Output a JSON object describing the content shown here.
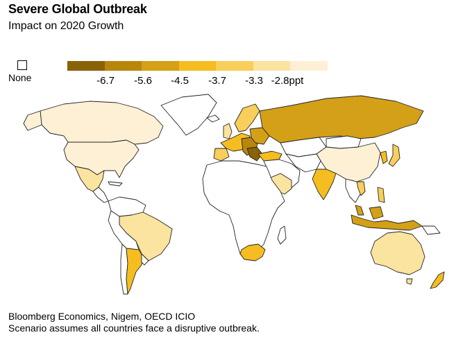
{
  "header": {
    "title": "Severe Global Outbreak",
    "subtitle": "Impact on 2020 Growth"
  },
  "legend": {
    "none_label": "None",
    "ticks": [
      "-6.7",
      "-5.6",
      "-4.5",
      "-3.7",
      "-3.3",
      "-2.8ppt"
    ],
    "colors": [
      "#8a6208",
      "#b8860b",
      "#d4a017",
      "#f5bd1f",
      "#f8cf5a",
      "#fbe3a0",
      "#fdf0d5"
    ]
  },
  "source": {
    "line1": "Bloomberg Economics, Nigem, OECD ICIO",
    "line2": "Scenario assumes all countries face a disruptive outbreak."
  }
}
